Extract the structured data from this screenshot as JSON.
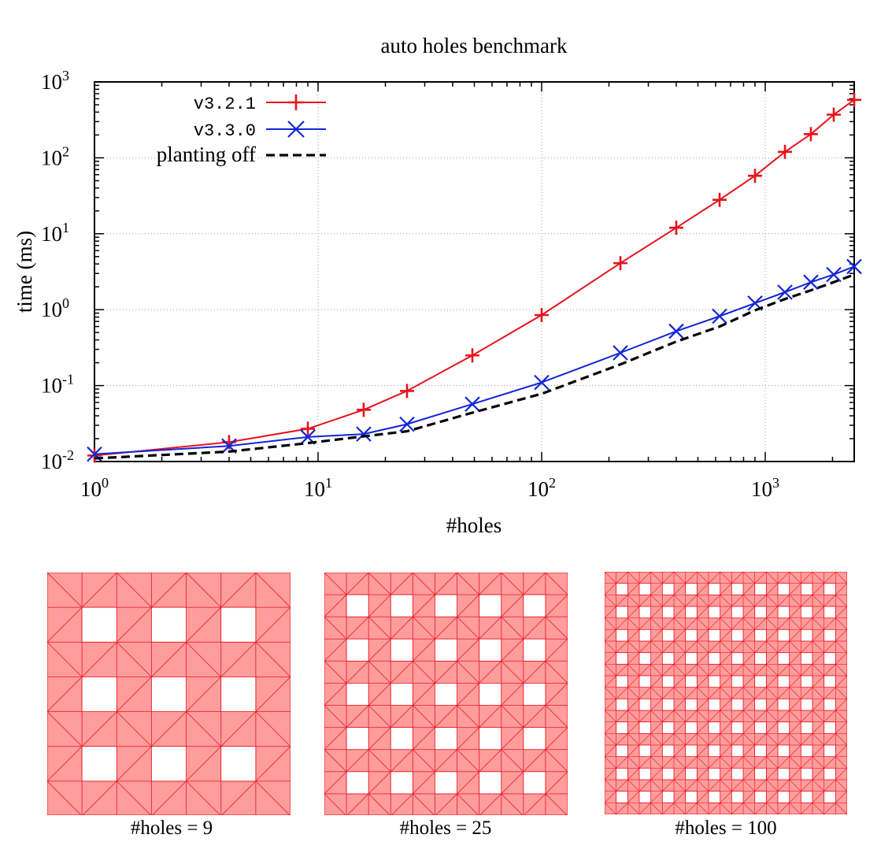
{
  "chart_data": {
    "type": "line",
    "title": "auto holes benchmark",
    "xlabel": "#holes",
    "ylabel": "time (ms)",
    "x_scale": "log",
    "y_scale": "log",
    "xlim": [
      1,
      2500
    ],
    "ylim": [
      0.01,
      1000
    ],
    "grid": true,
    "legend_position": "top-left",
    "x_ticks": [
      {
        "base": "10",
        "exp": "0"
      },
      {
        "base": "10",
        "exp": "1"
      },
      {
        "base": "10",
        "exp": "2"
      },
      {
        "base": "10",
        "exp": "3"
      }
    ],
    "y_ticks": [
      {
        "base": "10",
        "exp": "-2"
      },
      {
        "base": "10",
        "exp": "-1"
      },
      {
        "base": "10",
        "exp": "0"
      },
      {
        "base": "10",
        "exp": "1"
      },
      {
        "base": "10",
        "exp": "2"
      },
      {
        "base": "10",
        "exp": "3"
      }
    ],
    "series": [
      {
        "name": "v3.2.1",
        "color": "#e8121c",
        "marker": "plus",
        "dash": "solid",
        "x": [
          1,
          4,
          9,
          16,
          25,
          49,
          100,
          225,
          400,
          625,
          900,
          1225,
          1600,
          2025,
          2500
        ],
        "y": [
          0.012,
          0.018,
          0.027,
          0.048,
          0.085,
          0.25,
          0.85,
          4.1,
          12,
          28,
          58,
          120,
          205,
          370,
          580
        ]
      },
      {
        "name": "v3.3.0",
        "color": "#1225d8",
        "marker": "cross",
        "dash": "solid",
        "x": [
          1,
          4,
          9,
          16,
          25,
          49,
          100,
          225,
          400,
          625,
          900,
          1225,
          1600,
          2025,
          2500
        ],
        "y": [
          0.0125,
          0.016,
          0.021,
          0.023,
          0.031,
          0.057,
          0.11,
          0.27,
          0.52,
          0.82,
          1.22,
          1.7,
          2.3,
          2.9,
          3.7
        ]
      },
      {
        "name": "planting off",
        "color": "#000000",
        "marker": "none",
        "dash": "dashed",
        "x": [
          1,
          4,
          9,
          16,
          25,
          49,
          100,
          225,
          400,
          625,
          900,
          1225,
          1600,
          2025,
          2500
        ],
        "y": [
          0.011,
          0.0135,
          0.0175,
          0.0215,
          0.025,
          0.044,
          0.078,
          0.19,
          0.38,
          0.6,
          0.98,
          1.38,
          1.8,
          2.3,
          2.9
        ]
      }
    ]
  },
  "panels": [
    {
      "caption": "#holes = 9",
      "grid": 3,
      "fill": "#ff9d9d",
      "edge": "#e8121c"
    },
    {
      "caption": "#holes = 25",
      "grid": 5,
      "fill": "#ff9d9d",
      "edge": "#e8121c"
    },
    {
      "caption": "#holes = 100",
      "grid": 10,
      "fill": "#ff9d9d",
      "edge": "#e8121c"
    }
  ]
}
